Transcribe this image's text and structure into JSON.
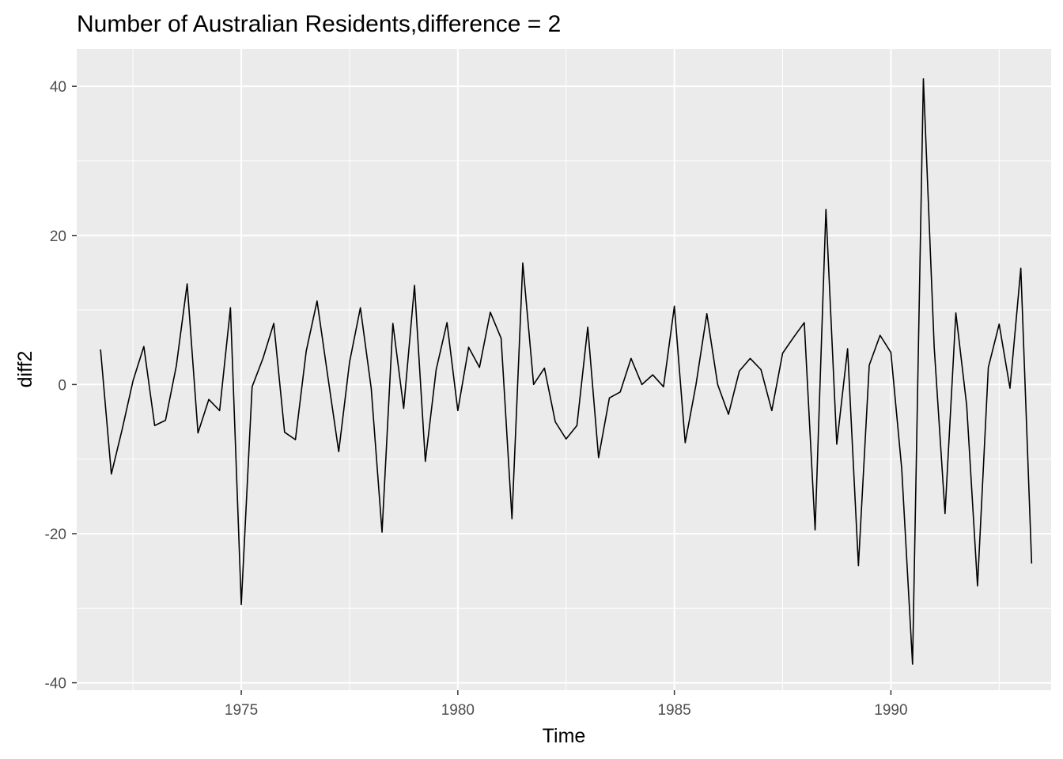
{
  "chart_data": {
    "type": "line",
    "title": "Number of Australian Residents,difference = 2",
    "xlabel": "Time",
    "ylabel": "diff2",
    "xlim": [
      1971.2,
      1993.7
    ],
    "ylim": [
      -41,
      45
    ],
    "x_ticks": [
      1975,
      1980,
      1985,
      1990
    ],
    "y_ticks": [
      -40,
      -20,
      0,
      20,
      40
    ],
    "grid": true,
    "background": "#ebebeb",
    "line_color": "#000000",
    "start": 1971.75,
    "frequency": 4,
    "values": [
      4.7,
      -12.0,
      -6.0,
      0.5,
      5.1,
      -5.5,
      -4.8,
      2.5,
      13.5,
      -6.5,
      -2.0,
      -3.5,
      10.3,
      -29.5,
      -0.3,
      3.5,
      8.2,
      -6.4,
      -7.4,
      4.5,
      11.2,
      1.0,
      -9.0,
      3.0,
      10.3,
      -0.5,
      -19.8,
      8.2,
      -3.2,
      13.3,
      -10.3,
      2.0,
      8.3,
      -3.5,
      5.0,
      2.3,
      9.7,
      6.2,
      -18.0,
      16.3,
      0.0,
      2.2,
      -5.0,
      -7.3,
      -5.5,
      7.7,
      -9.8,
      -1.8,
      -1.0,
      3.5,
      0.0,
      1.3,
      -0.3,
      10.5,
      -7.8,
      0.0,
      9.5,
      0.0,
      -4.0,
      1.8,
      3.5,
      2.0,
      -3.5,
      4.2,
      6.3,
      8.3,
      -19.5,
      23.5,
      -8.0,
      4.8,
      -24.3,
      2.6,
      6.6,
      4.3,
      -11.3,
      -37.5,
      41.0,
      5.0,
      -17.3,
      9.6,
      -2.8,
      -27.0,
      2.3,
      8.1,
      -0.5,
      15.6,
      -24.0
    ]
  }
}
